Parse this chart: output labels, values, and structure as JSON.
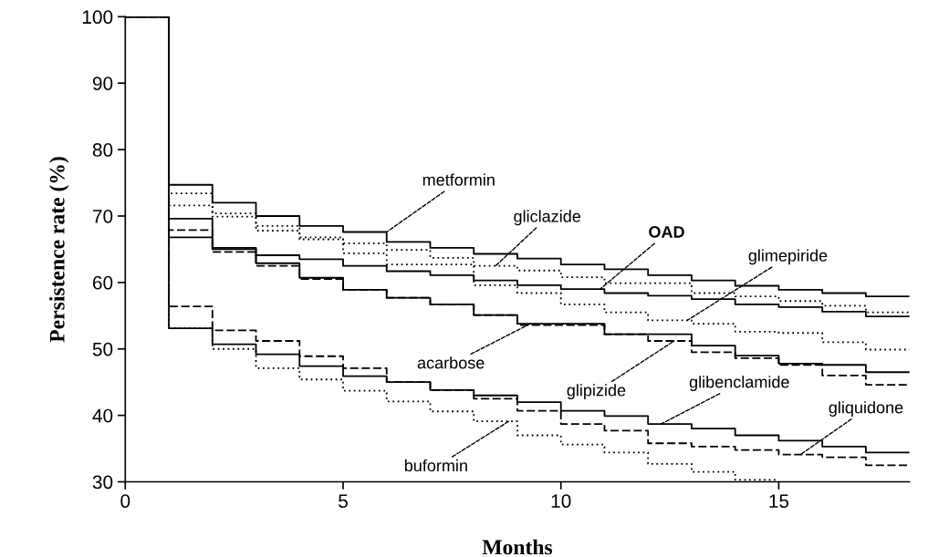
{
  "chart_data": {
    "type": "step",
    "xlabel": "Months",
    "ylabel": "Persistence rate (%)",
    "x": [
      0,
      1,
      2,
      3,
      4,
      5,
      6,
      7,
      8,
      9,
      10,
      11,
      12,
      13,
      14,
      15,
      16,
      17,
      18
    ],
    "xlim": [
      0,
      18
    ],
    "xticks": [
      0,
      5,
      10,
      15
    ],
    "ylim": [
      30,
      100
    ],
    "yticks": [
      30,
      40,
      50,
      60,
      70,
      80,
      90,
      100
    ],
    "grid": false,
    "marker": "none",
    "series": [
      {
        "color": "#000000",
        "line_style": "solid",
        "values": [
          100,
          74.7,
          72.0,
          70.0,
          68.5,
          67.6,
          66.1,
          65.2,
          64.3,
          63.6,
          62.7,
          62.0,
          61.1,
          60.3,
          59.5,
          58.9,
          58.4,
          57.9,
          57.9
        ]
      },
      {
        "color": "#000000",
        "line_style": "dotted",
        "values": [
          100,
          73.4,
          70.4,
          68.5,
          66.8,
          65.9,
          64.9,
          63.7,
          62.5,
          61.8,
          60.8,
          59.9,
          59.9,
          58.4,
          57.9,
          57.2,
          56.5,
          55.5,
          55.5
        ]
      },
      {
        "color": "#000000",
        "line_style": "solid",
        "values": [
          100,
          66.8,
          65.2,
          64.1,
          63.5,
          62.5,
          61.7,
          61.1,
          60.3,
          59.6,
          59.0,
          58.4,
          58.0,
          57.5,
          56.7,
          56.3,
          55.6,
          54.9,
          54.9
        ]
      },
      {
        "color": "#000000",
        "line_style": "dotted",
        "values": [
          100,
          71.6,
          69.9,
          67.8,
          66.5,
          64.4,
          62.7,
          62.7,
          59.6,
          58.4,
          56.7,
          55.5,
          54.3,
          53.8,
          52.6,
          52.4,
          51.0,
          49.9,
          49.9
        ]
      },
      {
        "color": "#000000",
        "line_style": "solid",
        "values": [
          100,
          69.6,
          65.0,
          62.9,
          60.7,
          58.9,
          57.7,
          56.7,
          55.1,
          53.8,
          53.8,
          52.2,
          52.2,
          50.5,
          49.0,
          47.8,
          47.6,
          46.5,
          46.5
        ]
      },
      {
        "color": "#000000",
        "line_style": "dashed",
        "values": [
          100,
          67.9,
          64.6,
          62.5,
          60.5,
          58.9,
          57.7,
          56.7,
          55.1,
          53.6,
          53.6,
          52.2,
          51.2,
          49.5,
          48.6,
          47.6,
          46.0,
          44.6,
          44.6
        ]
      },
      {
        "color": "#000000",
        "line_style": "solid",
        "values": [
          100,
          53.1,
          50.7,
          49.2,
          47.4,
          45.9,
          45.0,
          43.8,
          43.0,
          42.0,
          40.7,
          39.9,
          38.7,
          38.0,
          37.0,
          36.2,
          35.3,
          34.4,
          34.4
        ]
      },
      {
        "color": "#000000",
        "line_style": "dashed",
        "values": [
          100,
          56.4,
          52.8,
          51.2,
          48.9,
          47.1,
          45.0,
          43.8,
          42.5,
          40.7,
          38.7,
          37.7,
          35.8,
          35.3,
          34.8,
          34.1,
          33.7,
          32.5,
          32.5
        ]
      },
      {
        "color": "#000000",
        "line_style": "dotted",
        "x": [
          0,
          1,
          2,
          3,
          4,
          5,
          6,
          7,
          8,
          9,
          10,
          11,
          12,
          13,
          14,
          15
        ],
        "values": [
          100,
          53.1,
          50.0,
          47.1,
          45.4,
          43.7,
          42.1,
          40.6,
          39.1,
          37.0,
          35.6,
          34.4,
          32.7,
          31.5,
          30.3,
          30.3
        ]
      }
    ],
    "annotations": [
      {
        "text": "metformin",
        "x": 6.0,
        "y": 67.6
      },
      {
        "text": "gliclazide",
        "x": 8.5,
        "y": 62.5
      },
      {
        "text": "OAD",
        "x": 10.9,
        "y": 59.0
      },
      {
        "text": "glimepiride",
        "x": 12.9,
        "y": 54.3
      },
      {
        "text": "acarbose",
        "x": 9.3,
        "y": 53.8
      },
      {
        "text": "glipizide",
        "x": 12.6,
        "y": 51.2
      },
      {
        "text": "glibenclamide",
        "x": 12.3,
        "y": 38.7
      },
      {
        "text": "gliquidone",
        "x": 15.5,
        "y": 34.1
      },
      {
        "text": "buformin",
        "x": 8.8,
        "y": 39.1
      }
    ]
  }
}
